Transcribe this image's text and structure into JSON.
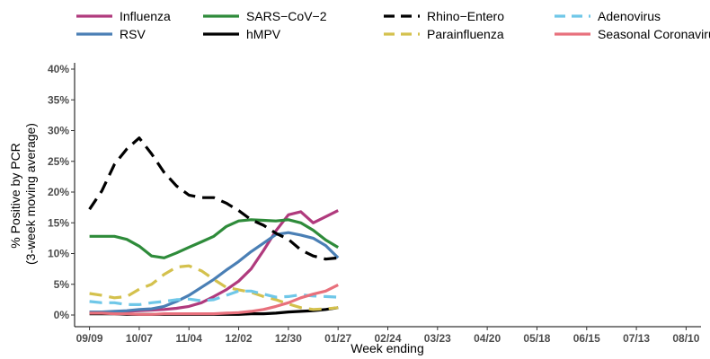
{
  "chart_data": {
    "type": "line",
    "xlabel": "Week ending",
    "ylabel_lines": [
      "% Positive by PCR",
      "(3-week moving average)"
    ],
    "ylim": [
      0,
      40
    ],
    "y_ticks": [
      0,
      5,
      10,
      15,
      20,
      25,
      30,
      35,
      40
    ],
    "y_tick_labels": [
      "0%",
      "5%",
      "10%",
      "15%",
      "20%",
      "25%",
      "30%",
      "35%",
      "40%"
    ],
    "x_tick_labels": [
      "09/09",
      "10/07",
      "11/04",
      "12/02",
      "12/30",
      "01/27",
      "02/24",
      "03/23",
      "04/20",
      "05/18",
      "06/15",
      "07/13",
      "08/10"
    ],
    "x_tick_weeks": [
      0,
      4,
      8,
      12,
      16,
      20,
      24,
      28,
      32,
      36,
      40,
      44,
      48
    ],
    "x_range_weeks": [
      -1.2,
      49.2
    ],
    "legend_position": "top",
    "series": [
      {
        "name": "Influenza",
        "color": "#b03a7d",
        "dash": "solid",
        "x": [
          0,
          1,
          2,
          3,
          4,
          5,
          6,
          7,
          8,
          9,
          10,
          11,
          12,
          13,
          14,
          15,
          16,
          17,
          18,
          19,
          20
        ],
        "values": [
          0.5,
          0.5,
          0.5,
          0.6,
          0.7,
          0.8,
          0.9,
          1.1,
          1.4,
          2.0,
          3.0,
          4.1,
          5.5,
          7.5,
          10.5,
          13.7,
          16.3,
          16.8,
          15.0,
          16.0,
          17.0
        ]
      },
      {
        "name": "RSV",
        "color": "#4a7fb5",
        "dash": "solid",
        "x": [
          0,
          1,
          2,
          3,
          4,
          5,
          6,
          7,
          8,
          9,
          10,
          11,
          12,
          13,
          14,
          15,
          16,
          17,
          18,
          19,
          20
        ],
        "values": [
          0.5,
          0.5,
          0.6,
          0.7,
          0.9,
          1.0,
          1.4,
          2.2,
          3.2,
          4.5,
          5.8,
          7.3,
          8.7,
          10.3,
          11.7,
          13.1,
          13.4,
          13.0,
          12.5,
          11.3,
          9.3
        ]
      },
      {
        "name": "SARS−CoV−2",
        "color": "#2e8b3a",
        "dash": "solid",
        "x": [
          0,
          1,
          2,
          3,
          4,
          5,
          6,
          7,
          8,
          9,
          10,
          11,
          12,
          13,
          14,
          15,
          16,
          17,
          18,
          19,
          20
        ],
        "values": [
          12.8,
          12.8,
          12.8,
          12.3,
          11.2,
          9.6,
          9.3,
          10.1,
          11.0,
          11.9,
          12.8,
          14.4,
          15.3,
          15.5,
          15.4,
          15.3,
          15.5,
          15.0,
          13.8,
          12.2,
          11.0
        ]
      },
      {
        "name": "hMPV",
        "color": "#000000",
        "dash": "solid",
        "x": [
          0,
          1,
          2,
          3,
          4,
          5,
          6,
          7,
          8,
          9,
          10,
          11,
          12,
          13,
          14,
          15,
          16,
          17,
          18,
          19,
          20
        ],
        "values": [
          0.2,
          0.2,
          0.2,
          0.1,
          0.1,
          0.1,
          0.1,
          0.1,
          0.1,
          0.1,
          0.1,
          0.1,
          0.1,
          0.2,
          0.2,
          0.3,
          0.5,
          0.6,
          0.7,
          0.9,
          1.2
        ]
      },
      {
        "name": "Rhino−Entero",
        "color": "#000000",
        "dash": "long",
        "x": [
          0,
          1,
          2,
          3,
          4,
          5,
          6,
          7,
          8,
          9,
          10,
          11,
          12,
          13,
          14,
          15,
          16,
          17,
          18,
          19,
          20
        ],
        "values": [
          17.2,
          20.2,
          24.5,
          27.0,
          28.8,
          26.2,
          23.2,
          21.0,
          19.5,
          19.1,
          19.1,
          18.2,
          17.0,
          15.5,
          14.6,
          13.3,
          12.3,
          10.6,
          9.6,
          9.1,
          9.3
        ]
      },
      {
        "name": "Parainfluenza",
        "color": "#d4c14d",
        "dash": "long",
        "x": [
          0,
          1,
          2,
          3,
          4,
          5,
          6,
          7,
          8,
          9,
          10,
          11,
          12,
          13,
          14,
          15,
          16,
          17,
          18,
          19,
          20
        ],
        "values": [
          3.5,
          3.2,
          2.8,
          3.0,
          4.2,
          5.0,
          6.6,
          7.8,
          8.0,
          7.2,
          5.8,
          4.5,
          4.1,
          3.7,
          3.0,
          2.5,
          1.8,
          1.2,
          0.9,
          1.0,
          1.2
        ]
      },
      {
        "name": "Adenovirus",
        "color": "#6fc7e8",
        "dash": "long",
        "x": [
          0,
          1,
          2,
          3,
          4,
          5,
          6,
          7,
          8,
          9,
          10,
          11,
          12,
          13,
          14,
          15,
          16,
          17,
          18,
          19,
          20
        ],
        "values": [
          2.2,
          2.0,
          2.0,
          1.7,
          1.7,
          2.0,
          2.2,
          2.5,
          2.6,
          2.3,
          2.5,
          3.2,
          3.9,
          3.9,
          3.4,
          2.9,
          3.0,
          3.3,
          3.1,
          3.0,
          2.9
        ]
      },
      {
        "name": "Seasonal Coronavirus",
        "color": "#e8707c",
        "dash": "solid",
        "x": [
          0,
          1,
          2,
          3,
          4,
          5,
          6,
          7,
          8,
          9,
          10,
          11,
          12,
          13,
          14,
          15,
          16,
          17,
          18,
          19,
          20
        ],
        "values": [
          0.3,
          0.3,
          0.2,
          0.2,
          0.1,
          0.1,
          0.2,
          0.2,
          0.2,
          0.2,
          0.2,
          0.3,
          0.4,
          0.6,
          0.9,
          1.4,
          2.0,
          2.8,
          3.4,
          3.9,
          4.9
        ]
      }
    ]
  }
}
